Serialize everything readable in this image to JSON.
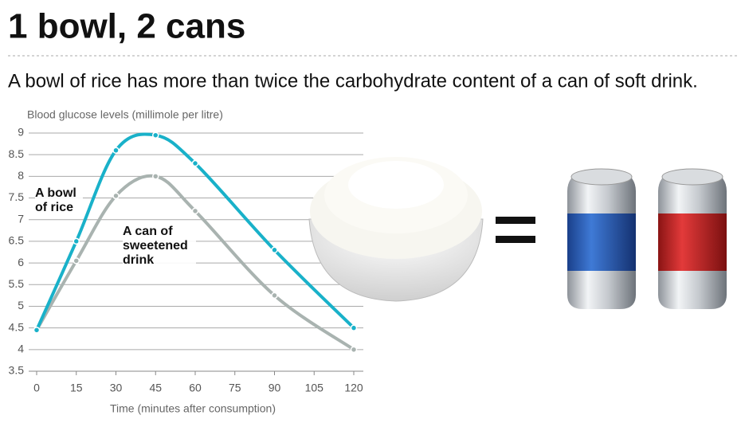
{
  "chart_data": {
    "type": "line",
    "title": "1 bowl, 2 cans",
    "subtitle": "A bowl of rice has more than twice the carbohydrate content of a can of  soft drink.",
    "y_label": "Blood glucose levels (millimole per litre)",
    "x_label": "Time (minutes after consumption)",
    "x": [
      0,
      15,
      30,
      45,
      60,
      90,
      120
    ],
    "xlim": [
      0,
      120
    ],
    "xticks": [
      0,
      15,
      30,
      45,
      60,
      75,
      90,
      105,
      120
    ],
    "ylim": [
      3.5,
      9
    ],
    "yticks": [
      3.5,
      4,
      4.5,
      5,
      5.5,
      6,
      6.5,
      7,
      7.5,
      8,
      8.5,
      9
    ],
    "grid": true,
    "series": [
      {
        "name": "A bowl of rice",
        "color": "#19b1c9",
        "values": [
          4.45,
          6.5,
          8.6,
          8.95,
          8.3,
          6.3,
          4.5
        ]
      },
      {
        "name": "A can of sweetened drink",
        "color": "#a9b3b0",
        "values": [
          4.45,
          6.05,
          7.55,
          8.0,
          7.2,
          5.25,
          4.0
        ]
      }
    ]
  }
}
